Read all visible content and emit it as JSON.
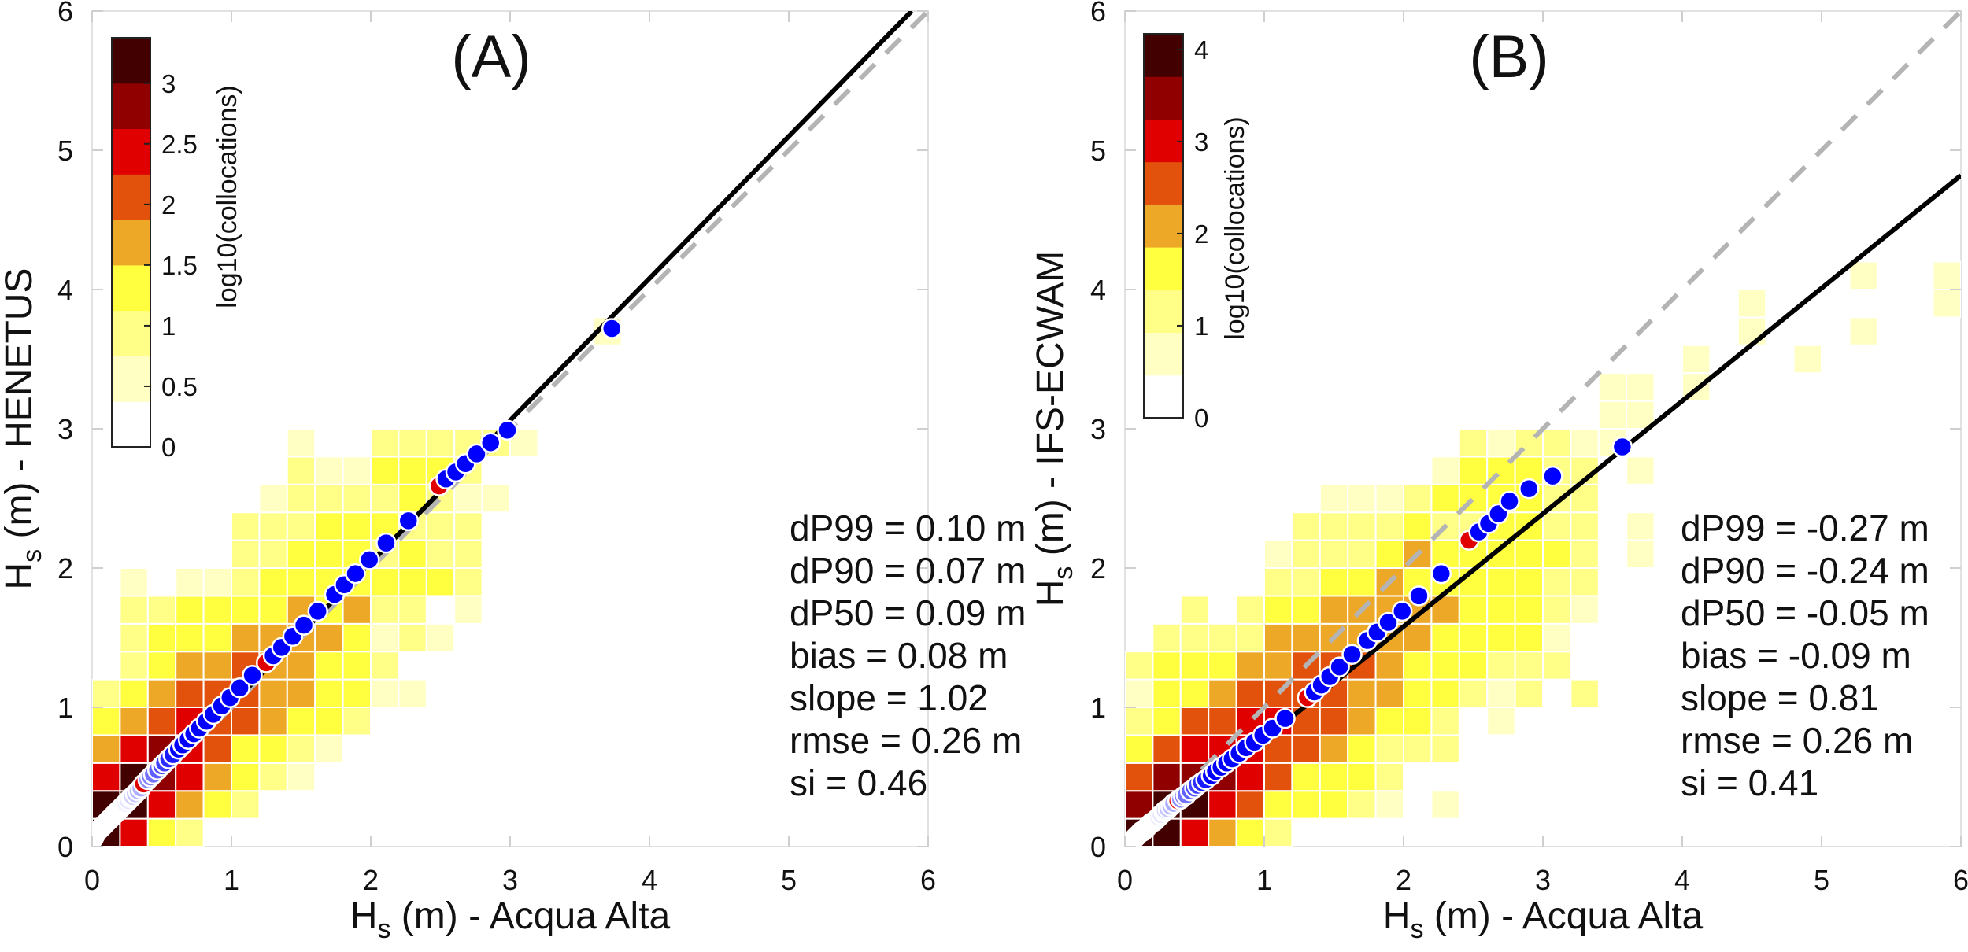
{
  "chart_data": [
    {
      "type": "heatmap",
      "title": "(A)",
      "xlabel": {
        "symbol": "H",
        "subscript": "s",
        "text": " (m) - Acqua Alta"
      },
      "ylabel": {
        "symbol": "H",
        "subscript": "s",
        "text": " (m) - HENETUS"
      },
      "xlim": [
        0,
        6
      ],
      "ylim": [
        0,
        6
      ],
      "xticks": [
        "0",
        "1",
        "2",
        "3",
        "4",
        "5",
        "6"
      ],
      "yticks": [
        "0",
        "1",
        "2",
        "3",
        "4",
        "5",
        "6"
      ],
      "bin_size": 0.2,
      "bin_rows": [
        [
          0,
          0,
          "8632"
        ],
        [
          1,
          0,
          "886432"
        ],
        [
          2,
          0,
          "68764321"
        ],
        [
          3,
          0,
          "467653321"
        ],
        [
          4,
          0,
          "3456554332"
        ],
        [
          5,
          0,
          "234555443311"
        ],
        [
          6,
          1,
          "2344544332"
        ],
        [
          7,
          1,
          "233344443121"
        ],
        [
          8,
          1,
          "2233334342201"
        ],
        [
          9,
          1,
          "1011233333332"
        ],
        [
          10,
          5,
          "223332322"
        ],
        [
          11,
          5,
          "222333222"
        ],
        [
          12,
          6,
          "122223211"
        ],
        [
          13,
          7,
          "2113332"
        ],
        [
          14,
          7,
          "100222221"
        ],
        [
          18,
          18,
          "1"
        ]
      ],
      "colorbar": {
        "label": "log10(collocations)",
        "max": 3.375,
        "levels": 9,
        "ticks": [
          "0",
          "0.5",
          "1",
          "1.5",
          "2",
          "2.5",
          "3"
        ],
        "tick_values": [
          0,
          0.5,
          1,
          1.5,
          2,
          2.5,
          3
        ]
      },
      "qq_points": [
        [
          2,
          0.01,
          0.06
        ],
        [
          4,
          0.02,
          0.08
        ],
        [
          6,
          0.03,
          0.1
        ],
        [
          8,
          0.05,
          0.12
        ],
        [
          10,
          0.06,
          0.13
        ],
        [
          12,
          0.07,
          0.14
        ],
        [
          14,
          0.08,
          0.15
        ],
        [
          16,
          0.09,
          0.16
        ],
        [
          18,
          0.11,
          0.18
        ],
        [
          20,
          0.12,
          0.19
        ],
        [
          22,
          0.13,
          0.2
        ],
        [
          24,
          0.15,
          0.22
        ],
        [
          26,
          0.16,
          0.23
        ],
        [
          28,
          0.18,
          0.25
        ],
        [
          30,
          0.19,
          0.26
        ],
        [
          32,
          0.21,
          0.28
        ],
        [
          34,
          0.22,
          0.29
        ],
        [
          36,
          0.24,
          0.31
        ],
        [
          38,
          0.26,
          0.33
        ],
        [
          40,
          0.28,
          0.35
        ],
        [
          42,
          0.29,
          0.36
        ],
        [
          44,
          0.31,
          0.38
        ],
        [
          46,
          0.33,
          0.4
        ],
        [
          48,
          0.35,
          0.42
        ],
        [
          50,
          0.37,
          0.45
        ],
        [
          52,
          0.4,
          0.48
        ],
        [
          54,
          0.42,
          0.5
        ],
        [
          56,
          0.44,
          0.52
        ],
        [
          58,
          0.47,
          0.55
        ],
        [
          60,
          0.5,
          0.58
        ],
        [
          62,
          0.52,
          0.6
        ],
        [
          64,
          0.55,
          0.63
        ],
        [
          66,
          0.58,
          0.66
        ],
        [
          68,
          0.62,
          0.7
        ],
        [
          70,
          0.65,
          0.73
        ],
        [
          72,
          0.69,
          0.77
        ],
        [
          74,
          0.73,
          0.81
        ],
        [
          76,
          0.77,
          0.85
        ],
        [
          78,
          0.82,
          0.9
        ],
        [
          80,
          0.87,
          0.95
        ],
        [
          82,
          0.93,
          1.01
        ],
        [
          84,
          0.99,
          1.07
        ],
        [
          86,
          1.06,
          1.14
        ],
        [
          88,
          1.15,
          1.23
        ],
        [
          90,
          1.25,
          1.32
        ],
        [
          91,
          1.3,
          1.37
        ],
        [
          92,
          1.36,
          1.43
        ],
        [
          93,
          1.44,
          1.51
        ],
        [
          94,
          1.52,
          1.59
        ],
        [
          95,
          1.62,
          1.69
        ],
        [
          96,
          1.74,
          1.81
        ],
        [
          96.5,
          1.81,
          1.88
        ],
        [
          97,
          1.89,
          1.96
        ],
        [
          97.5,
          1.99,
          2.06
        ],
        [
          98,
          2.11,
          2.18
        ],
        [
          98.5,
          2.27,
          2.34
        ],
        [
          99,
          2.49,
          2.59
        ],
        [
          99.1,
          2.54,
          2.64
        ],
        [
          99.2,
          2.61,
          2.69
        ],
        [
          99.3,
          2.68,
          2.75
        ],
        [
          99.4,
          2.76,
          2.82
        ],
        [
          99.5,
          2.86,
          2.9
        ],
        [
          99.6,
          2.98,
          2.99
        ],
        [
          99.9,
          3.73,
          3.72
        ]
      ],
      "highlight_percentiles": [
        50,
        90,
        99
      ],
      "fit_line": {
        "slope": 1.02,
        "intercept": 0.0
      },
      "one_to_one_line": true,
      "stats": [
        "dP99 = 0.10 m",
        "dP90 = 0.07 m",
        "dP50 = 0.09 m",
        "bias = 0.08 m",
        "slope = 1.02",
        "rmse = 0.26 m",
        "si = 0.46"
      ]
    },
    {
      "type": "heatmap",
      "title": "(B)",
      "xlabel": {
        "symbol": "H",
        "subscript": "s",
        "text": " (m) - Acqua Alta"
      },
      "ylabel": {
        "symbol": "H",
        "subscript": "s",
        "text": " (m) - IFS-ECWAM"
      },
      "xlim": [
        0,
        6
      ],
      "ylim": [
        0,
        6
      ],
      "xticks": [
        "0",
        "1",
        "2",
        "3",
        "4",
        "5",
        "6"
      ],
      "yticks": [
        "0",
        "1",
        "2",
        "3",
        "4",
        "5",
        "6"
      ],
      "bin_size": 0.2,
      "bin_rows": [
        [
          0,
          0,
          "886432"
        ],
        [
          1,
          0,
          "788653332101"
        ],
        [
          2,
          0,
          "5777653332"
        ],
        [
          3,
          0,
          "356665543222"
        ],
        [
          4,
          0,
          "23556655433201"
        ],
        [
          5,
          0,
          "13345555443321202"
        ],
        [
          6,
          0,
          "2333445554333222"
        ],
        [
          7,
          1,
          "222244444433331"
        ],
        [
          8,
          2,
          "202334444433321"
        ],
        [
          9,
          5,
          "223343333322"
        ],
        [
          10,
          5,
          "12223433333201"
        ],
        [
          11,
          6,
          "2222322332201"
        ],
        [
          12,
          7,
          "1112333322"
        ],
        [
          13,
          11,
          "13332201"
        ],
        [
          14,
          12,
          "212211"
        ],
        [
          15,
          17,
          "11"
        ],
        [
          16,
          17,
          "1101"
        ],
        [
          17,
          20,
          "10001"
        ],
        [
          18,
          22,
          "10001"
        ],
        [
          19,
          22,
          "10000001"
        ],
        [
          20,
          26,
          "1001"
        ]
      ],
      "colorbar": {
        "label": "log10(collocations)",
        "max": 4.17,
        "levels": 9,
        "ticks": [
          "0",
          "1",
          "2",
          "3",
          "4"
        ],
        "tick_values": [
          0,
          1,
          2,
          3,
          4
        ]
      },
      "qq_points": [
        [
          2,
          0.01,
          0.01
        ],
        [
          4,
          0.02,
          0.02
        ],
        [
          6,
          0.03,
          0.03
        ],
        [
          8,
          0.05,
          0.04
        ],
        [
          10,
          0.06,
          0.05
        ],
        [
          12,
          0.07,
          0.06
        ],
        [
          14,
          0.08,
          0.07
        ],
        [
          16,
          0.09,
          0.08
        ],
        [
          18,
          0.11,
          0.1
        ],
        [
          20,
          0.12,
          0.11
        ],
        [
          22,
          0.13,
          0.11
        ],
        [
          24,
          0.15,
          0.13
        ],
        [
          26,
          0.16,
          0.14
        ],
        [
          28,
          0.18,
          0.16
        ],
        [
          30,
          0.19,
          0.17
        ],
        [
          32,
          0.21,
          0.18
        ],
        [
          34,
          0.22,
          0.19
        ],
        [
          36,
          0.24,
          0.21
        ],
        [
          38,
          0.26,
          0.23
        ],
        [
          40,
          0.28,
          0.25
        ],
        [
          42,
          0.29,
          0.26
        ],
        [
          44,
          0.31,
          0.27
        ],
        [
          46,
          0.33,
          0.29
        ],
        [
          48,
          0.35,
          0.31
        ],
        [
          50,
          0.38,
          0.33
        ],
        [
          52,
          0.4,
          0.34
        ],
        [
          54,
          0.42,
          0.36
        ],
        [
          56,
          0.44,
          0.37
        ],
        [
          58,
          0.47,
          0.4
        ],
        [
          60,
          0.5,
          0.42
        ],
        [
          62,
          0.52,
          0.44
        ],
        [
          64,
          0.55,
          0.46
        ],
        [
          66,
          0.58,
          0.48
        ],
        [
          68,
          0.62,
          0.51
        ],
        [
          70,
          0.65,
          0.54
        ],
        [
          72,
          0.69,
          0.57
        ],
        [
          74,
          0.73,
          0.6
        ],
        [
          76,
          0.77,
          0.63
        ],
        [
          78,
          0.82,
          0.67
        ],
        [
          80,
          0.87,
          0.71
        ],
        [
          82,
          0.93,
          0.75
        ],
        [
          84,
          0.99,
          0.8
        ],
        [
          86,
          1.06,
          0.85
        ],
        [
          88,
          1.15,
          0.92
        ],
        [
          90,
          1.31,
          1.07
        ],
        [
          91,
          1.36,
          1.11
        ],
        [
          92,
          1.41,
          1.16
        ],
        [
          93,
          1.47,
          1.22
        ],
        [
          94,
          1.54,
          1.29
        ],
        [
          95,
          1.63,
          1.38
        ],
        [
          96,
          1.74,
          1.48
        ],
        [
          96.5,
          1.81,
          1.54
        ],
        [
          97,
          1.89,
          1.61
        ],
        [
          97.5,
          1.99,
          1.69
        ],
        [
          98,
          2.11,
          1.8
        ],
        [
          98.5,
          2.27,
          1.96
        ],
        [
          99,
          2.47,
          2.2
        ],
        [
          99.1,
          2.54,
          2.26
        ],
        [
          99.2,
          2.61,
          2.32
        ],
        [
          99.3,
          2.68,
          2.39
        ],
        [
          99.4,
          2.76,
          2.48
        ],
        [
          99.5,
          2.9,
          2.57
        ],
        [
          99.6,
          3.07,
          2.66
        ],
        [
          99.9,
          3.57,
          2.87
        ]
      ],
      "highlight_percentiles": [
        50,
        90,
        99
      ],
      "fit_line": {
        "slope": 0.81,
        "intercept": -0.04
      },
      "one_to_one_line": true,
      "stats": [
        "dP99 = -0.27 m",
        "dP90 = -0.24 m",
        "dP50 = -0.05 m",
        "bias = -0.09 m",
        "slope = 0.81",
        "rmse = 0.26 m",
        "si = 0.41"
      ]
    }
  ],
  "colors": {
    "levels": [
      "#ffffff",
      "#ffffc4",
      "#ffff88",
      "#ffff40",
      "#eda827",
      "#e2520c",
      "#e00000",
      "#900000",
      "#420000"
    ],
    "qq_low": "#ffffff",
    "qq_high": "#0000ff",
    "qq_highlight": "#e00000",
    "fit_line": "#000000",
    "one_to_one": "#b4b4b4",
    "axes": "#e2e2e2"
  }
}
